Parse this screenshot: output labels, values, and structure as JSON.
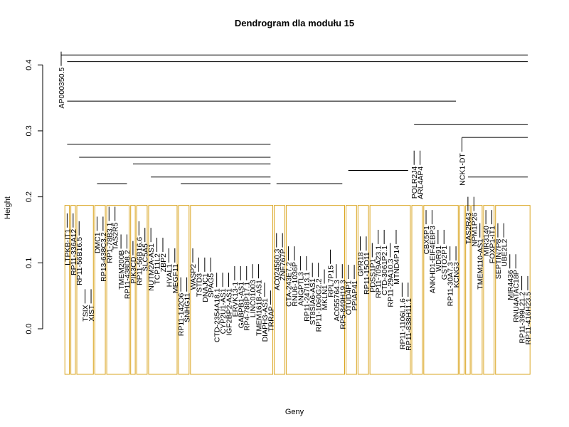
{
  "chart_data": {
    "type": "dendrogram",
    "title": "Dendrogram dla modułu 15",
    "xlabel": "Geny",
    "ylabel": "Height",
    "ylim": [
      0,
      0.42
    ],
    "yticks": [
      "0.0",
      "0.1",
      "0.2",
      "0.3",
      "0.4"
    ],
    "cut_height": 0.187,
    "box_color": "#DAA520",
    "line_color": "#000000",
    "labels": [
      {
        "text": "AP000350.5",
        "order": 1,
        "height": 0.42
      },
      {
        "text": "LTPKB-IT1",
        "order": 2,
        "height": 0.175
      },
      {
        "text": "RP11-336A12",
        "order": 3,
        "height": 0.175
      },
      {
        "text": "RP11-56B16.5",
        "order": 4,
        "height": 0.163
      },
      {
        "text": "TSIX",
        "order": 5,
        "height": 0.06
      },
      {
        "text": "XIST",
        "order": 6,
        "height": 0.06
      },
      {
        "text": "DMC1",
        "order": 7,
        "height": 0.17
      },
      {
        "text": "RP13-638C3.2",
        "order": 8,
        "height": 0.17
      },
      {
        "text": "RP1-78B3.1",
        "order": 9,
        "height": 0.185
      },
      {
        "text": "TAS2R5",
        "order": 10,
        "height": 0.185
      },
      {
        "text": "TMEM200B",
        "order": 11,
        "height": 0.143
      },
      {
        "text": "RP11-438D8.2",
        "order": 12,
        "height": 0.143
      },
      {
        "text": "PIK3CD",
        "order": 13,
        "height": 0.133
      },
      {
        "text": "RP11-56B16.6",
        "order": 14,
        "height": 0.163
      },
      {
        "text": "SLC5A5",
        "order": 15,
        "height": 0.153
      },
      {
        "text": "NUTM2A-AS1",
        "order": 16,
        "height": 0.153
      },
      {
        "text": "TCP11L2",
        "order": 17,
        "height": 0.138
      },
      {
        "text": "ZBP2",
        "order": 18,
        "height": 0.138
      },
      {
        "text": "HYAL1",
        "order": 19,
        "height": 0.122
      },
      {
        "text": "MEGF11",
        "order": 20,
        "height": 0.122
      },
      {
        "text": "RP11-142O6",
        "order": 21,
        "height": 0.078
      },
      {
        "text": "SNHG11",
        "order": 22,
        "height": 0.078
      },
      {
        "text": "WASP2",
        "order": 23,
        "height": 0.122
      },
      {
        "text": "TSTD3",
        "order": 24,
        "height": 0.108
      },
      {
        "text": "DNAJC1",
        "order": 25,
        "height": 0.108
      },
      {
        "text": "SPAG5",
        "order": 26,
        "height": 0.108
      },
      {
        "text": "CTD-2354A18.1",
        "order": 27,
        "height": 0.085
      },
      {
        "text": "CYP2U1-AS1",
        "order": 28,
        "height": 0.085
      },
      {
        "text": "IGF2BP2-AS1",
        "order": 29,
        "height": 0.085
      },
      {
        "text": "ERVK13-1",
        "order": 30,
        "height": 0.095
      },
      {
        "text": "GABPB1-AS1",
        "order": 31,
        "height": 0.095
      },
      {
        "text": "RP4-788P17.1",
        "order": 32,
        "height": 0.095
      },
      {
        "text": "LINC01003",
        "order": 33,
        "height": 0.098
      },
      {
        "text": "TMEM161B-AS1",
        "order": 34,
        "height": 0.098
      },
      {
        "text": "DIAPH3-AS1",
        "order": 35,
        "height": 0.07
      },
      {
        "text": "TRRAP",
        "order": 36,
        "height": 0.058
      },
      {
        "text": "AC024560.3",
        "order": 37,
        "height": 0.145
      },
      {
        "text": "ZNF767P",
        "order": 38,
        "height": 0.145
      },
      {
        "text": "CTA-243E7.2",
        "order": 39,
        "height": 0.125
      },
      {
        "text": "RNU6-1036P",
        "order": 40,
        "height": 0.125
      },
      {
        "text": "ANGPTL3",
        "order": 41,
        "height": 0.11
      },
      {
        "text": "RP11-247I13.1",
        "order": 42,
        "height": 0.11
      },
      {
        "text": "ST8SIA6-AS1",
        "order": 43,
        "height": 0.1
      },
      {
        "text": "RP11-1060G2.2",
        "order": 44,
        "height": 0.1
      },
      {
        "text": "MKLN1",
        "order": 45,
        "height": 0.09
      },
      {
        "text": "RPL7P15",
        "order": 46,
        "height": 0.12
      },
      {
        "text": "AC055764.3",
        "order": 47,
        "height": 0.098
      },
      {
        "text": "RP5-849H19.3",
        "order": 48,
        "height": 0.098
      },
      {
        "text": "OTUD4P1",
        "order": 49,
        "height": 0.097
      },
      {
        "text": "PPIAP41",
        "order": 50,
        "height": 0.097
      },
      {
        "text": "GPR18",
        "order": 51,
        "height": 0.14
      },
      {
        "text": "RP11-15O11",
        "order": 52,
        "height": 0.14
      },
      {
        "text": "PDSS1P1",
        "order": 53,
        "height": 0.13
      },
      {
        "text": "RP11-709A23.1",
        "order": 54,
        "height": 0.15
      },
      {
        "text": "CTD-3061P2.1",
        "order": 55,
        "height": 0.15
      },
      {
        "text": "RP11-29A10.3",
        "order": 56,
        "height": 0.13
      },
      {
        "text": "MTND4P14",
        "order": 57,
        "height": 0.15
      },
      {
        "text": "RP11-1106L1.6",
        "order": 58,
        "height": 0.07
      },
      {
        "text": "RP11-838H11.1",
        "order": 59,
        "height": 0.07
      },
      {
        "text": "POLR2J4",
        "order": 60,
        "height": 0.27
      },
      {
        "text": "ARL4AP4",
        "order": 61,
        "height": 0.27
      },
      {
        "text": "CBX5P1",
        "order": 62,
        "height": 0.18
      },
      {
        "text": "ANKHD1-EIF4EBP3",
        "order": 63,
        "height": 0.18
      },
      {
        "text": "WDR91",
        "order": 64,
        "height": 0.15
      },
      {
        "text": "GSTO2P1",
        "order": 65,
        "height": 0.15
      },
      {
        "text": "RP11-30A7.3",
        "order": 66,
        "height": 0.125
      },
      {
        "text": "KCNG3",
        "order": 67,
        "height": 0.125
      },
      {
        "text": "NCK1-DT",
        "order": 68,
        "height": 0.29
      },
      {
        "text": "TAS2R43",
        "order": 69,
        "height": 0.2
      },
      {
        "text": "NPM1P26",
        "order": 70,
        "height": 0.2
      },
      {
        "text": "TMEM110-AS1",
        "order": 71,
        "height": 0.16
      },
      {
        "text": "MIR3140",
        "order": 72,
        "height": 0.18
      },
      {
        "text": "FOXP1-IT1",
        "order": 73,
        "height": 0.18
      },
      {
        "text": "SEPTIN7P8",
        "order": 74,
        "height": 0.16
      },
      {
        "text": "UBE2L2",
        "order": 75,
        "height": 0.16
      },
      {
        "text": "MIR4436",
        "order": 76,
        "height": 0.113
      },
      {
        "text": "RNU4ATAC18P",
        "order": 77,
        "height": 0.113
      },
      {
        "text": "RP11-399L21.2",
        "order": 78,
        "height": 0.08
      },
      {
        "text": "RP11-416H23.5",
        "order": 79,
        "height": 0.08
      }
    ]
  }
}
